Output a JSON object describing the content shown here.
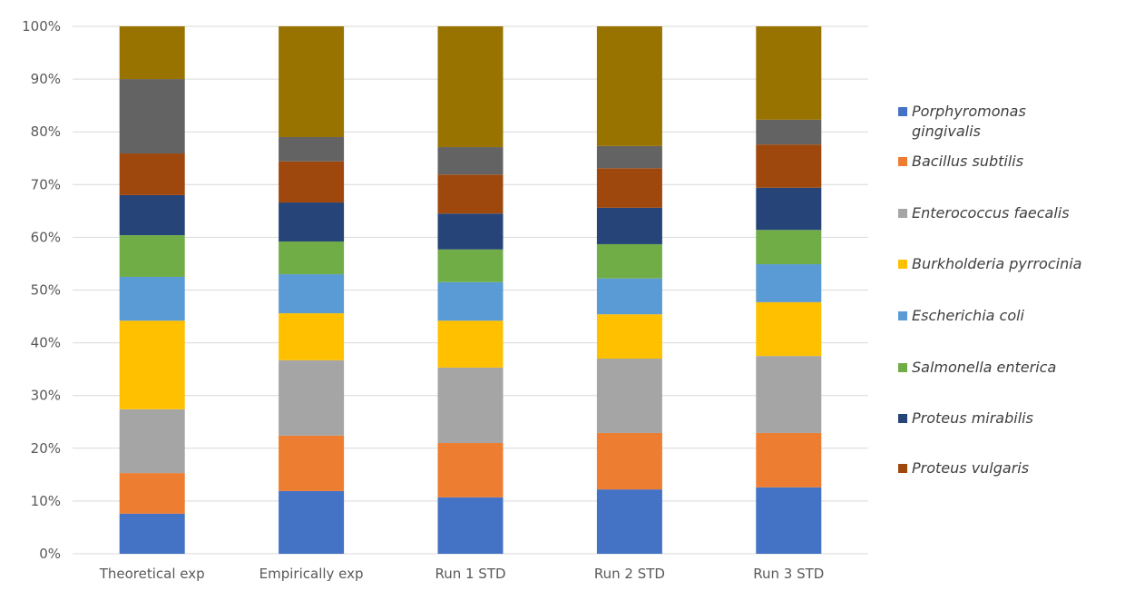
{
  "chart_data": {
    "type": "bar",
    "stacked": "percent",
    "categories": [
      "Theoretical exp",
      "Empirically exp",
      "Run 1 STD",
      "Run 2 STD",
      "Run 3 STD"
    ],
    "ylim": [
      0,
      100
    ],
    "yticks": [
      "0%",
      "10%",
      "20%",
      "30%",
      "40%",
      "50%",
      "60%",
      "70%",
      "80%",
      "90%",
      "100%"
    ],
    "grid": true,
    "legend_position": "right",
    "series": [
      {
        "name": "Porphyromonas gingivalis",
        "color": "#4472C4",
        "values": [
          7.6,
          11.9,
          10.7,
          12.2,
          12.6
        ]
      },
      {
        "name": "Bacillus subtilis",
        "color": "#ED7D31",
        "values": [
          7.7,
          10.5,
          10.3,
          10.7,
          10.3
        ]
      },
      {
        "name": "Enterococcus faecalis",
        "color": "#A5A5A5",
        "values": [
          12.1,
          14.3,
          14.3,
          14.1,
          14.6
        ]
      },
      {
        "name": "Burkholderia pyrrocinia",
        "color": "#FFC000",
        "values": [
          16.8,
          8.9,
          8.9,
          8.4,
          10.2
        ]
      },
      {
        "name": "Escherichia coli",
        "color": "#5B9BD5",
        "values": [
          8.3,
          7.4,
          7.3,
          6.8,
          7.2
        ]
      },
      {
        "name": "Salmonella enterica",
        "color": "#70AD47",
        "values": [
          7.9,
          6.2,
          6.2,
          6.5,
          6.5
        ]
      },
      {
        "name": "Proteus mirabilis",
        "color": "#264478",
        "values": [
          7.6,
          7.4,
          6.8,
          6.9,
          8.0
        ]
      },
      {
        "name": "Proteus vulgaris",
        "color": "#9E480E",
        "values": [
          7.9,
          7.8,
          7.4,
          7.5,
          8.2
        ]
      },
      {
        "color": "#636363",
        "values": [
          14.1,
          4.6,
          5.2,
          4.2,
          4.7
        ]
      },
      {
        "color": "#997300",
        "values": [
          10.0,
          21.0,
          22.9,
          22.7,
          17.7
        ]
      }
    ]
  }
}
